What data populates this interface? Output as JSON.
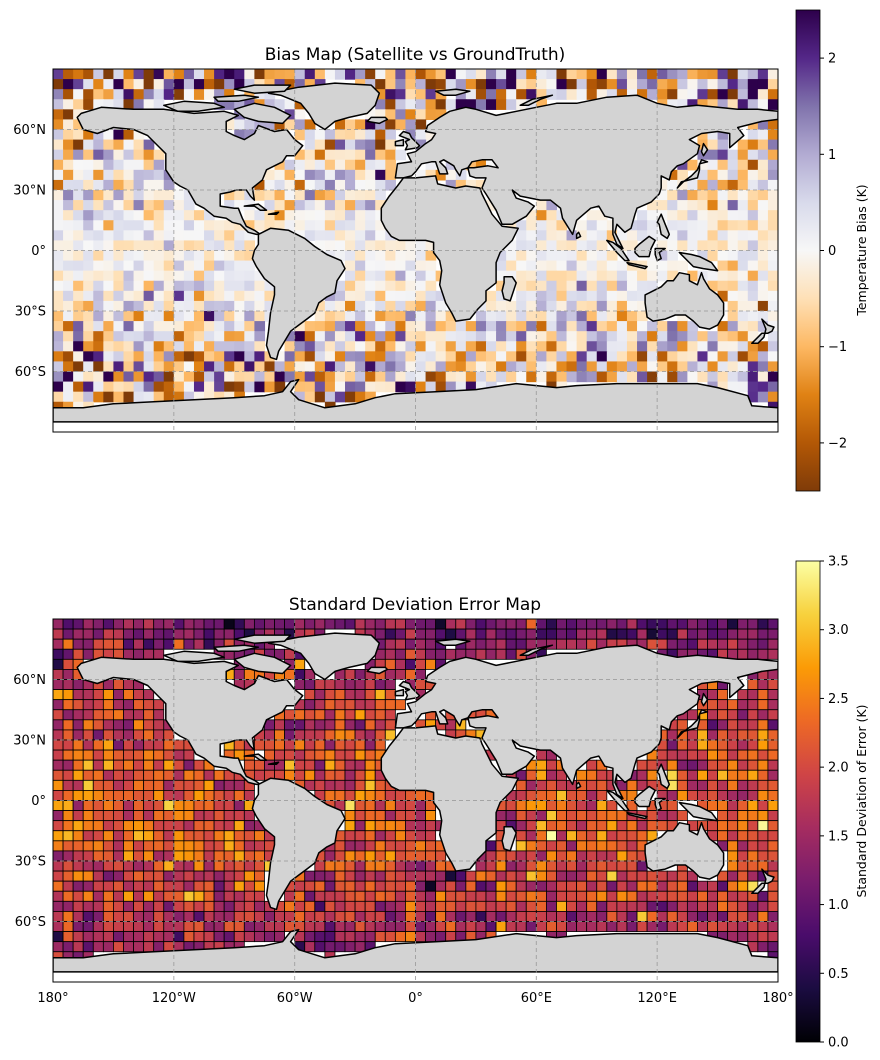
{
  "chart_data": [
    {
      "type": "heatmap",
      "title": "Bias Map (Satellite vs GroundTruth)",
      "xlim": [
        -180,
        180
      ],
      "ylim": [
        -90,
        90
      ],
      "xticks": [],
      "yticks": [
        {
          "value": 60,
          "label": "60°N"
        },
        {
          "value": 30,
          "label": "30°N"
        },
        {
          "value": 0,
          "label": "0°"
        },
        {
          "value": -30,
          "label": "30°S"
        },
        {
          "value": -60,
          "label": "60°S"
        }
      ],
      "grid": true,
      "cell_size_deg": 5,
      "cell_value_range": [
        -2.5,
        2.5
      ],
      "cell_outline": false,
      "land_color": "#d3d3d3",
      "colorbar": {
        "label": "Temperature Bias (K)",
        "range": [
          -2.5,
          2.5
        ],
        "ticks": [
          {
            "value": 2,
            "label": "2"
          },
          {
            "value": 1,
            "label": "1"
          },
          {
            "value": 0,
            "label": "0"
          },
          {
            "value": -1,
            "label": "−1"
          },
          {
            "value": -2,
            "label": "−2"
          }
        ],
        "colormap": "PuOr",
        "stops": [
          "#7f3b08",
          "#b35806",
          "#e08214",
          "#fdb863",
          "#fee0b6",
          "#f7f7f7",
          "#d8daeb",
          "#b2abd2",
          "#8073ac",
          "#542788",
          "#2d004b"
        ]
      }
    },
    {
      "type": "heatmap",
      "title": "Standard Deviation Error Map",
      "xlim": [
        -180,
        180
      ],
      "ylim": [
        -90,
        90
      ],
      "xticks": [
        {
          "value": -180,
          "label": "180°"
        },
        {
          "value": -120,
          "label": "120°W"
        },
        {
          "value": -60,
          "label": "60°W"
        },
        {
          "value": 0,
          "label": "0°"
        },
        {
          "value": 60,
          "label": "60°E"
        },
        {
          "value": 120,
          "label": "120°E"
        },
        {
          "value": 180,
          "label": "180°"
        }
      ],
      "yticks": [
        {
          "value": 60,
          "label": "60°N"
        },
        {
          "value": 30,
          "label": "30°N"
        },
        {
          "value": 0,
          "label": "0°"
        },
        {
          "value": -30,
          "label": "30°S"
        },
        {
          "value": -60,
          "label": "60°S"
        }
      ],
      "grid": true,
      "cell_size_deg": 5,
      "cell_value_range": [
        0,
        3.5
      ],
      "cell_outline": true,
      "land_color": "#d3d3d3",
      "colorbar": {
        "label": "Standard Deviation of Error (K)",
        "range": [
          0,
          3.5
        ],
        "ticks": [
          {
            "value": 3.5,
            "label": "3.5"
          },
          {
            "value": 3.0,
            "label": "3.0"
          },
          {
            "value": 2.5,
            "label": "2.5"
          },
          {
            "value": 2.0,
            "label": "2.0"
          },
          {
            "value": 1.5,
            "label": "1.5"
          },
          {
            "value": 1.0,
            "label": "1.0"
          },
          {
            "value": 0.5,
            "label": "0.5"
          },
          {
            "value": 0.0,
            "label": "0.0"
          }
        ],
        "colormap": "inferno",
        "stops": [
          "#000004",
          "#1b0c41",
          "#4a0c6b",
          "#781c6d",
          "#a52c60",
          "#cf4446",
          "#ed6925",
          "#fb9b06",
          "#f7d13d",
          "#fcffa4"
        ]
      }
    }
  ]
}
